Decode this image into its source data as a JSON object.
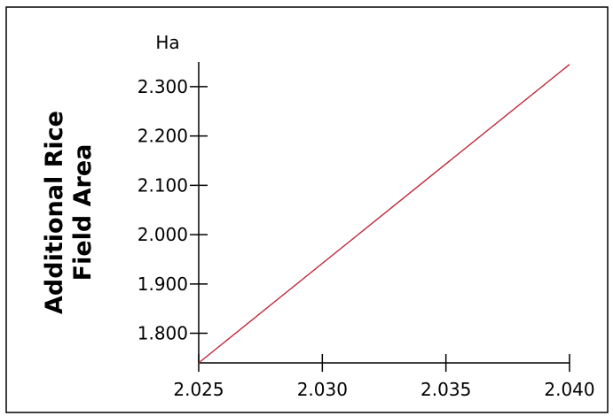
{
  "chart_data": {
    "type": "line",
    "title": "",
    "xlabel": "",
    "ylabel_lines": [
      "Additional Rice",
      "Field Area"
    ],
    "y_unit": "Ha",
    "x_ticks": [
      "2.025",
      "2.030",
      "2.035",
      "2.040"
    ],
    "y_ticks": [
      "1.800",
      "1.900",
      "2.000",
      "2.100",
      "2.200",
      "2.300"
    ],
    "xlim": [
      2.025,
      2.04
    ],
    "ylim": [
      1.74,
      2.35
    ],
    "grid": false,
    "series": [
      {
        "color": "#c0283a",
        "x": [
          2.025,
          2.04
        ],
        "y": [
          1.74,
          2.345
        ]
      }
    ]
  }
}
